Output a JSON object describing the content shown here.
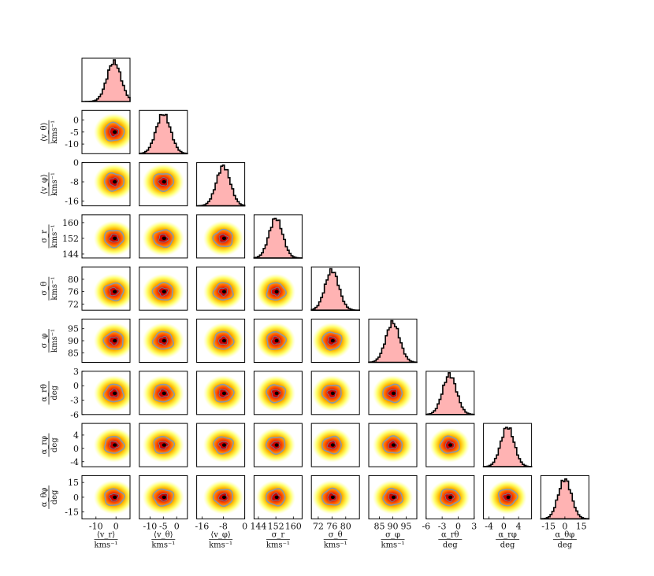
{
  "chart_data": {
    "type": "corner",
    "parameters": [
      {
        "key": "vr",
        "label": "⟨v_r⟩",
        "unit": "kms⁻¹",
        "lim": [
          -17,
          7
        ],
        "ticks": [
          -10,
          0
        ],
        "center": -1,
        "sigma": 3.5
      },
      {
        "key": "vtheta",
        "label": "⟨v_θ⟩",
        "unit": "kms⁻¹",
        "lim": [
          -14,
          4
        ],
        "ticks": [
          -10,
          -5,
          0
        ],
        "center": -5,
        "sigma": 2.7
      },
      {
        "key": "vphi",
        "label": "⟨v_φ⟩",
        "unit": "kms⁻¹",
        "lim": [
          -18,
          0
        ],
        "ticks": [
          -16,
          -8,
          0
        ],
        "center": -8,
        "sigma": 2.6
      },
      {
        "key": "sigr",
        "label": "σ_r",
        "unit": "kms⁻¹",
        "lim": [
          142,
          164
        ],
        "ticks": [
          144,
          152,
          160
        ],
        "center": 152,
        "sigma": 3.1
      },
      {
        "key": "sigtheta",
        "label": "σ_θ",
        "unit": "kms⁻¹",
        "lim": [
          70,
          84
        ],
        "ticks": [
          72,
          76,
          80
        ],
        "center": 76,
        "sigma": 2.0
      },
      {
        "key": "sigphi",
        "label": "σ_φ",
        "unit": "kms⁻¹",
        "lim": [
          81,
          99
        ],
        "ticks": [
          85,
          90,
          95
        ],
        "center": 90,
        "sigma": 2.6
      },
      {
        "key": "arth",
        "label": "α_rθ",
        "unit": "deg",
        "lim": [
          -6,
          3
        ],
        "ticks": [
          -6,
          -3,
          0,
          3
        ],
        "center": -1.6,
        "sigma": 1.3
      },
      {
        "key": "arph",
        "label": "α_rφ",
        "unit": "deg",
        "lim": [
          -5.5,
          7.5
        ],
        "ticks": [
          -4,
          0,
          4
        ],
        "center": 1,
        "sigma": 1.8
      },
      {
        "key": "athph",
        "label": "α_θφ",
        "unit": "deg",
        "lim": [
          -22,
          22
        ],
        "ticks": [
          -15,
          0,
          15
        ],
        "center": 0,
        "sigma": 6.0
      }
    ],
    "row_labels": [
      "⟨v_θ⟩",
      "⟨v_φ⟩",
      "σ_r",
      "σ_θ",
      "σ_φ",
      "α_rθ",
      "α_rφ",
      "α_θφ"
    ],
    "x_tick_labels": [
      [
        "-10",
        "0"
      ],
      [
        "-10",
        "-5",
        "0"
      ],
      [
        "-16",
        "-8",
        "0"
      ],
      [
        "144",
        "152",
        "160"
      ],
      [
        "72",
        "76",
        "80"
      ],
      [
        "85",
        "90",
        "95"
      ],
      [
        "-6",
        "-3",
        "0",
        "3"
      ],
      [
        "-4",
        "0",
        "4"
      ],
      [
        "-15",
        "0",
        "15"
      ]
    ],
    "y_tick_labels": [
      [
        "0",
        "-5",
        "-10"
      ],
      [
        "0",
        "-8",
        "-16"
      ],
      [
        "160",
        "152",
        "144"
      ],
      [
        "80",
        "76",
        "72"
      ],
      [
        "95",
        "90",
        "85"
      ],
      [
        "3",
        "0",
        "-3",
        "-6"
      ],
      [
        "4",
        "0",
        "-4"
      ],
      [
        "15",
        "0",
        "-15"
      ]
    ],
    "colors": {
      "hist_fill": "#ffb3b3",
      "hist_edge": "#000000",
      "density_outer": "#ffff66",
      "density_mid": "#ff8800",
      "density_core": "#cc0000",
      "contour": "#8899aa",
      "peak": "#000000"
    }
  }
}
